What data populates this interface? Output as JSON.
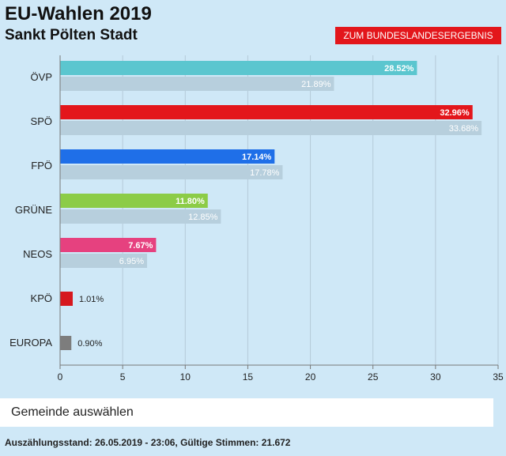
{
  "header": {
    "title": "EU-Wahlen 2019",
    "subtitle": "Sankt Pölten Stadt",
    "state_button_label": "ZUM BUNDESLANDESERGEBNIS"
  },
  "municipality_select": {
    "label": "Gemeinde auswählen"
  },
  "footer": {
    "text": "Auszählungsstand: 26.05.2019 - 23:06, Gültige Stimmen: 21.672"
  },
  "chart_data": {
    "type": "bar",
    "orientation": "horizontal",
    "categories": [
      "ÖVP",
      "SPÖ",
      "FPÖ",
      "GRÜNE",
      "NEOS",
      "KPÖ",
      "EUROPA"
    ],
    "series": [
      {
        "values": [
          28.52,
          32.96,
          17.14,
          11.8,
          7.67,
          1.01,
          0.9
        ],
        "labels": [
          "28.52%",
          "32.96%",
          "17.14%",
          "11.80%",
          "7.67%",
          "1.01%",
          "0.90%"
        ],
        "colors": [
          "#5bc6cf",
          "#e3161b",
          "#1f6fe8",
          "#8ccc47",
          "#e6417f",
          "#d6181e",
          "#7d7d7d"
        ]
      },
      {
        "values": [
          21.89,
          33.68,
          17.78,
          12.85,
          6.95,
          null,
          null
        ],
        "labels": [
          "21.89%",
          "33.68%",
          "17.78%",
          "12.85%",
          "6.95%",
          "",
          ""
        ],
        "color": "#b7cfdd"
      }
    ],
    "xlim": [
      0,
      35
    ],
    "xticks": [
      "0",
      "5",
      "10",
      "15",
      "20",
      "25",
      "30",
      "35"
    ],
    "grid": true,
    "label_text_color": "#ffffff",
    "outside_label_color": "#222222",
    "axis_color": "#777777",
    "grid_color": "#b5cad8"
  }
}
